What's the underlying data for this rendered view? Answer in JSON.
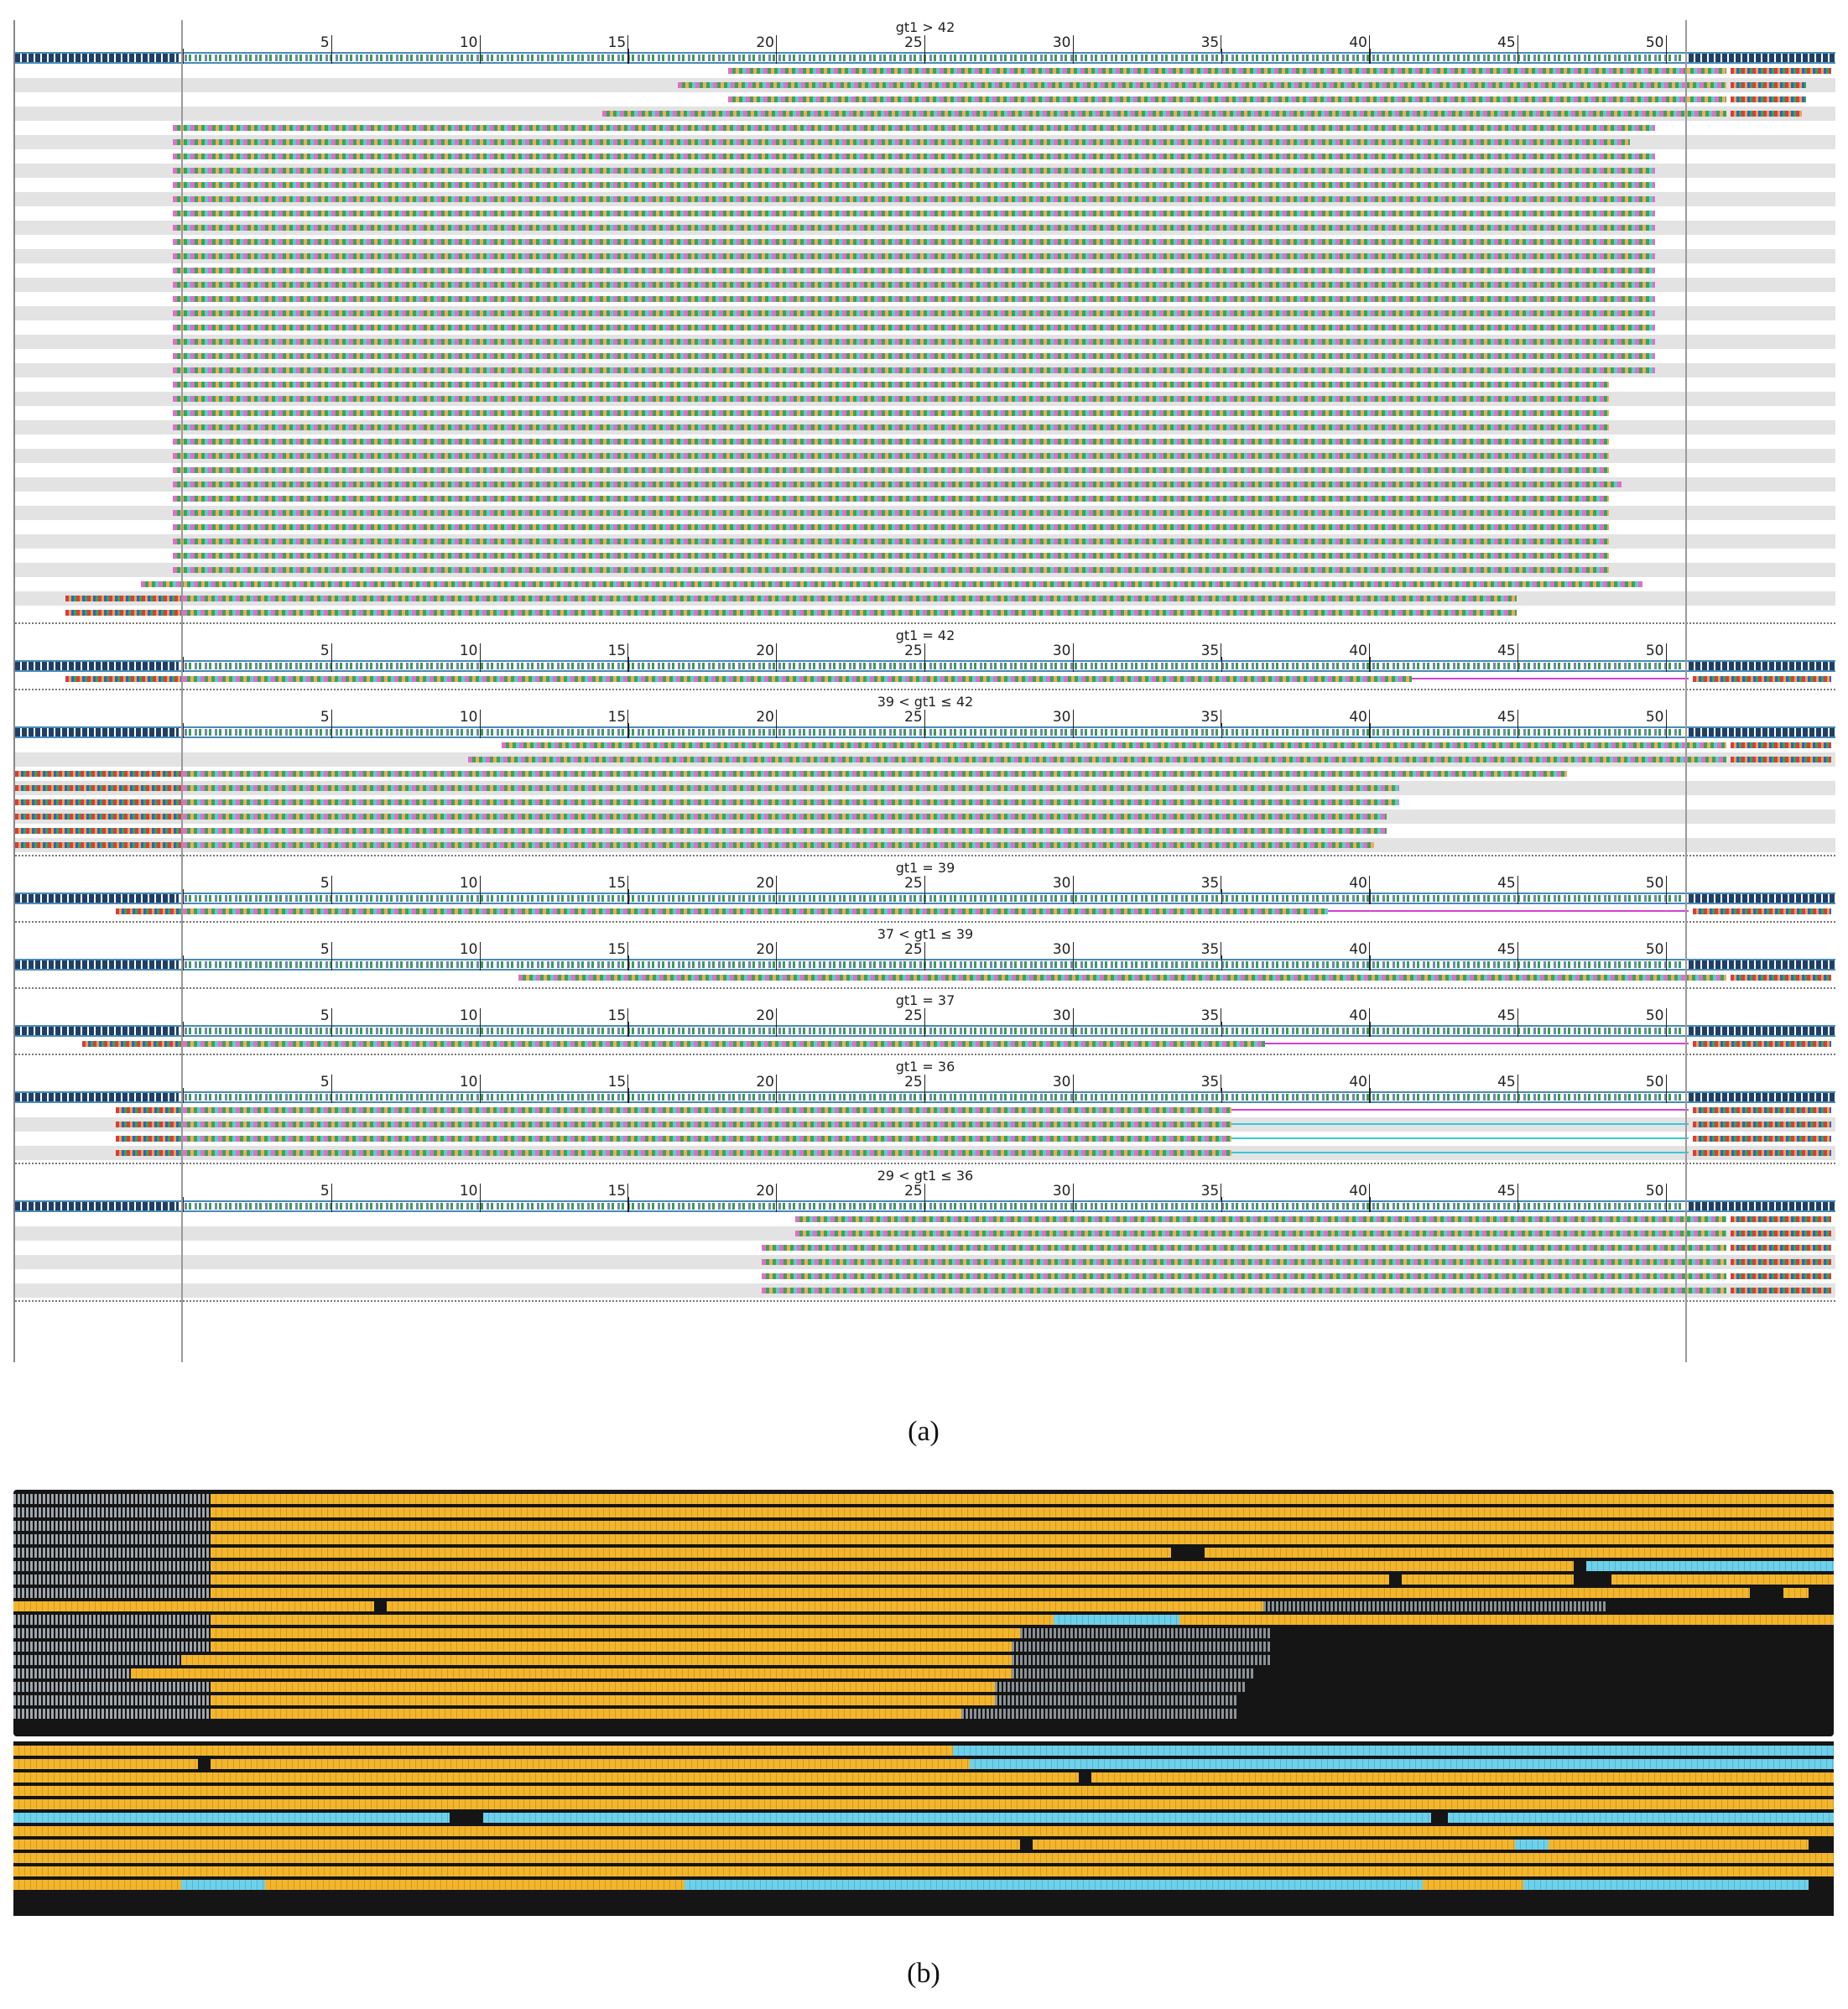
{
  "panel_a": {
    "flank_label": "NNNNNNNNNNNNNNNNNN",
    "ruler_ticks": [
      "5",
      "10",
      "15",
      "20",
      "25",
      "30",
      "35",
      "40",
      "45",
      "50"
    ],
    "groups": [
      {
        "title": "gt1 > 42",
        "rows": [
          {
            "s": 850,
            "e": 2040,
            "f": 2045,
            "fe": 2165
          },
          {
            "s": 790,
            "e": 2040,
            "f": 2045,
            "fe": 2135
          },
          {
            "s": 850,
            "e": 2040,
            "f": 2045,
            "fe": 2135
          },
          {
            "s": 700,
            "e": 2040,
            "f": 2045,
            "fe": 2130
          },
          {
            "s": 188,
            "e": 1955
          },
          {
            "s": 188,
            "e": 1925
          },
          {
            "s": 188,
            "e": 1955
          },
          {
            "s": 188,
            "e": 1955
          },
          {
            "s": 188,
            "e": 1955
          },
          {
            "s": 188,
            "e": 1955
          },
          {
            "s": 188,
            "e": 1955
          },
          {
            "s": 188,
            "e": 1955
          },
          {
            "s": 188,
            "e": 1955
          },
          {
            "s": 188,
            "e": 1955
          },
          {
            "s": 188,
            "e": 1955
          },
          {
            "s": 188,
            "e": 1955
          },
          {
            "s": 188,
            "e": 1955
          },
          {
            "s": 188,
            "e": 1955
          },
          {
            "s": 188,
            "e": 1955
          },
          {
            "s": 188,
            "e": 1955
          },
          {
            "s": 188,
            "e": 1955
          },
          {
            "s": 188,
            "e": 1955
          },
          {
            "s": 188,
            "e": 1900
          },
          {
            "s": 188,
            "e": 1900
          },
          {
            "s": 188,
            "e": 1900
          },
          {
            "s": 188,
            "e": 1900
          },
          {
            "s": 188,
            "e": 1900
          },
          {
            "s": 188,
            "e": 1900
          },
          {
            "s": 188,
            "e": 1900
          },
          {
            "s": 188,
            "e": 1915
          },
          {
            "s": 188,
            "e": 1900
          },
          {
            "s": 188,
            "e": 1900
          },
          {
            "s": 188,
            "e": 1900
          },
          {
            "s": 188,
            "e": 1900
          },
          {
            "s": 188,
            "e": 1900
          },
          {
            "s": 188,
            "e": 1900
          },
          {
            "s": 150,
            "e": 1940
          },
          {
            "s": 60,
            "e": 1790,
            "fl": 1
          },
          {
            "s": 60,
            "e": 1790,
            "fl": 1
          }
        ]
      },
      {
        "title": "gt1 = 42",
        "rows": [
          {
            "s": 60,
            "e": 1665,
            "g": 1995,
            "f": 2000,
            "fe": 2165,
            "fl": 1
          }
        ]
      },
      {
        "title": "39 < gt1 ≤ 42",
        "rows": [
          {
            "s": 580,
            "e": 2040,
            "f": 2045,
            "fe": 2165
          },
          {
            "s": 540,
            "e": 2040,
            "f": 2045,
            "fe": 2165
          },
          {
            "s": 0,
            "e": 1850,
            "fl": 1
          },
          {
            "s": 0,
            "e": 1650,
            "fl": 1
          },
          {
            "s": 0,
            "e": 1650,
            "fl": 1
          },
          {
            "s": 0,
            "e": 1635,
            "fl": 1
          },
          {
            "s": 0,
            "e": 1635,
            "fl": 1
          },
          {
            "s": 0,
            "e": 1620,
            "fl": 1
          }
        ]
      },
      {
        "title": "gt1 = 39",
        "rows": [
          {
            "s": 120,
            "e": 1565,
            "g": 1995,
            "f": 2000,
            "fe": 2165,
            "fl": 1
          }
        ]
      },
      {
        "title": "37 < gt1 ≤ 39",
        "rows": [
          {
            "s": 600,
            "e": 2040,
            "f": 2045,
            "fe": 2165
          }
        ]
      },
      {
        "title": "gt1 = 37",
        "rows": [
          {
            "s": 80,
            "e": 1490,
            "g": 1995,
            "f": 2000,
            "fe": 2165,
            "fl": 1
          }
        ]
      },
      {
        "title": "gt1 = 36",
        "rows": [
          {
            "s": 120,
            "e": 1450,
            "g": 1995,
            "f": 2000,
            "fe": 2165,
            "fl": 1
          },
          {
            "s": 120,
            "e": 1450,
            "g": 1995,
            "f": 2000,
            "fe": 2165,
            "fl": 1,
            "c": 1
          },
          {
            "s": 120,
            "e": 1450,
            "g": 1995,
            "f": 2000,
            "fe": 2165,
            "fl": 1,
            "c": 1
          },
          {
            "s": 120,
            "e": 1450,
            "g": 1995,
            "f": 2000,
            "fe": 2165,
            "fl": 1,
            "c": 1
          }
        ]
      },
      {
        "title": "29 < gt1 ≤ 36",
        "rows": [
          {
            "s": 930,
            "e": 2040,
            "f": 2045,
            "fe": 2165
          },
          {
            "s": 930,
            "e": 2040,
            "f": 2045,
            "fe": 2165
          },
          {
            "s": 890,
            "e": 2040,
            "f": 2045,
            "fe": 2165
          },
          {
            "s": 890,
            "e": 2040,
            "f": 2045,
            "fe": 2165
          },
          {
            "s": 890,
            "e": 2040,
            "f": 2045,
            "fe": 2165
          },
          {
            "s": 890,
            "e": 2040,
            "f": 2045,
            "fe": 2165
          }
        ]
      }
    ],
    "caption": "(a)"
  },
  "panel_b": {
    "flank_read_prefix": "CAACCAACTTTCTGTGAAAGAAGAAGAA",
    "tail_sequence": "TAGAAATGTGTTTAAGAATTCCTCAATAAGACTAA",
    "block1": [
      [
        [
          "f",
          0,
          235
        ],
        [
          "g",
          235,
          2170
        ]
      ],
      [
        [
          "f",
          0,
          235
        ],
        [
          "g",
          235,
          2170
        ]
      ],
      [
        [
          "f",
          0,
          235
        ],
        [
          "g",
          235,
          2170
        ]
      ],
      [
        [
          "f",
          0,
          235
        ],
        [
          "g",
          235,
          2170
        ]
      ],
      [
        [
          "f",
          0,
          235
        ],
        [
          "g",
          235,
          1380
        ],
        [
          "k",
          1380,
          1420
        ],
        [
          "g",
          1420,
          2170
        ]
      ],
      [
        [
          "f",
          0,
          235
        ],
        [
          "g",
          235,
          1860
        ],
        [
          "k",
          1860,
          1875
        ],
        [
          "c",
          1875,
          2170
        ]
      ],
      [
        [
          "f",
          0,
          235
        ],
        [
          "g",
          235,
          1640
        ],
        [
          "k",
          1640,
          1655
        ],
        [
          "g",
          1655,
          1860
        ],
        [
          "k",
          1860,
          1905
        ],
        [
          "g",
          1905,
          2170
        ]
      ],
      [
        [
          "f",
          0,
          235
        ],
        [
          "g",
          235,
          2070
        ],
        [
          "k",
          2070,
          2110
        ],
        [
          "g",
          2110,
          2140
        ]
      ],
      [
        [
          "g",
          0,
          430
        ],
        [
          "k",
          430,
          445
        ],
        [
          "g",
          445,
          1490
        ],
        [
          "t",
          1490,
          1900
        ]
      ],
      [
        [
          "f",
          0,
          235
        ],
        [
          "g",
          235,
          1240
        ],
        [
          "c",
          1240,
          1390
        ],
        [
          "g",
          1390,
          2170
        ]
      ],
      [
        [
          "f",
          0,
          235
        ],
        [
          "g",
          235,
          1200
        ],
        [
          "t",
          1200,
          1500
        ]
      ],
      [
        [
          "f",
          0,
          235
        ],
        [
          "g",
          235,
          1190
        ],
        [
          "t",
          1190,
          1500
        ]
      ],
      [
        [
          "f",
          0,
          200
        ],
        [
          "g",
          200,
          1190
        ],
        [
          "t",
          1190,
          1500
        ]
      ],
      [
        [
          "f",
          0,
          140
        ],
        [
          "g",
          140,
          1190
        ],
        [
          "t",
          1190,
          1480
        ]
      ],
      [
        [
          "f",
          0,
          235
        ],
        [
          "g",
          235,
          1170
        ],
        [
          "t",
          1170,
          1470
        ]
      ],
      [
        [
          "f",
          0,
          235
        ],
        [
          "g",
          235,
          1170
        ],
        [
          "t",
          1170,
          1460
        ]
      ],
      [
        [
          "f",
          0,
          235
        ],
        [
          "g",
          235,
          1130
        ],
        [
          "t",
          1130,
          1460
        ]
      ]
    ],
    "block2": [
      [
        [
          "g",
          0,
          1120
        ],
        [
          "c",
          1120,
          2170
        ]
      ],
      [
        [
          "g",
          0,
          220
        ],
        [
          "k",
          220,
          235
        ],
        [
          "g",
          235,
          1140
        ],
        [
          "c",
          1140,
          2170
        ]
      ],
      [
        [
          "g",
          0,
          1270
        ],
        [
          "k",
          1270,
          1285
        ],
        [
          "g",
          1285,
          2170
        ]
      ],
      [
        [
          "g",
          0,
          2170
        ]
      ],
      [
        [
          "g",
          0,
          2170
        ]
      ],
      [
        [
          "c",
          0,
          520
        ],
        [
          "k",
          520,
          560
        ],
        [
          "c",
          560,
          1690
        ],
        [
          "k",
          1690,
          1710
        ],
        [
          "c",
          1710,
          2170
        ]
      ],
      [
        [
          "g",
          0,
          2170
        ]
      ],
      [
        [
          "g",
          0,
          1200
        ],
        [
          "k",
          1200,
          1215
        ],
        [
          "g",
          1215,
          1790
        ],
        [
          "c",
          1790,
          1830
        ],
        [
          "g",
          1830,
          2140
        ]
      ],
      [
        [
          "g",
          0,
          2170
        ]
      ],
      [
        [
          "g",
          0,
          2170
        ]
      ],
      [
        [
          "g",
          0,
          200
        ],
        [
          "c",
          200,
          300
        ],
        [
          "g",
          300,
          800
        ],
        [
          "c",
          800,
          1680
        ],
        [
          "g",
          1680,
          1800
        ],
        [
          "c",
          1800,
          2140
        ]
      ]
    ],
    "caption": "(b)"
  }
}
